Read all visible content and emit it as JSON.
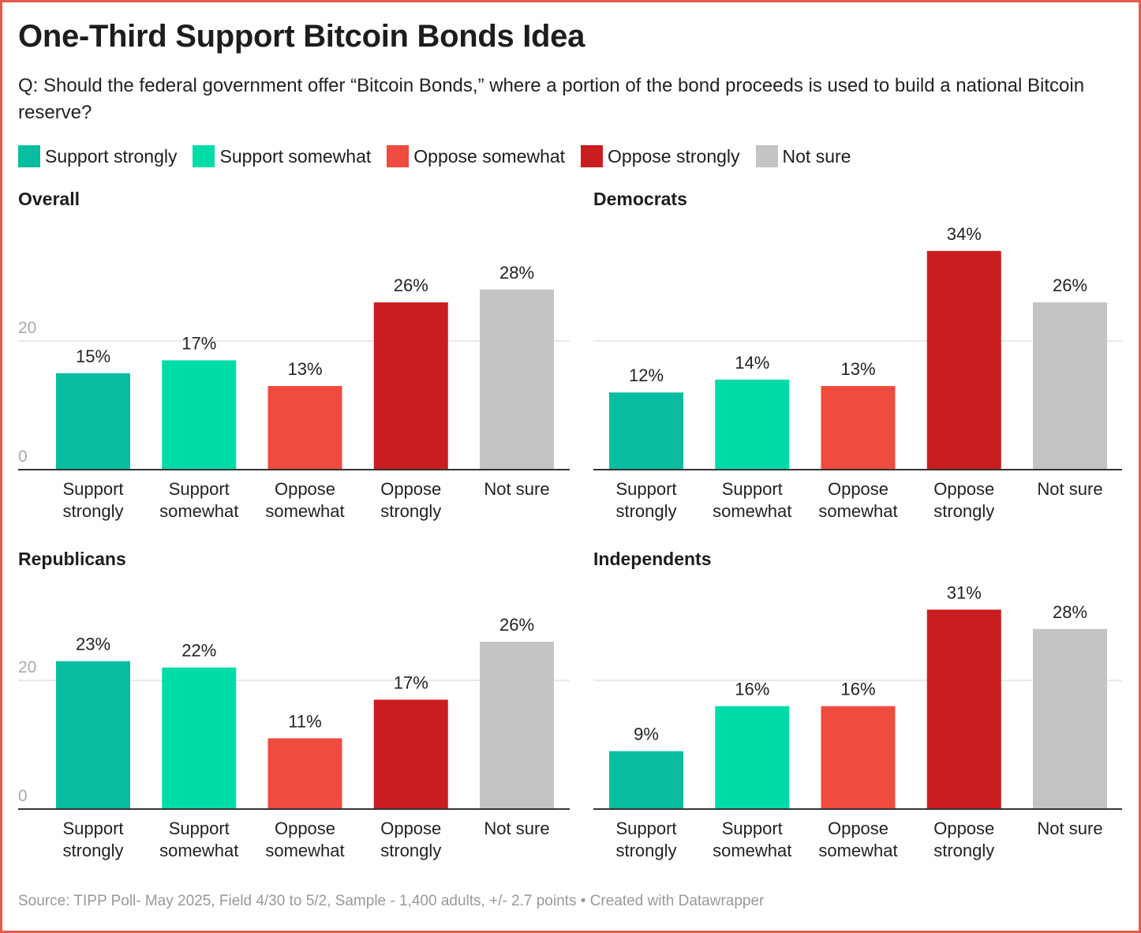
{
  "title": "One-Third Support Bitcoin Bonds Idea",
  "subtitle": "Q: Should the federal government offer “Bitcoin Bonds,” where a portion of the bond proceeds is used to build a national Bitcoin reserve?",
  "legend": [
    {
      "label": "Support strongly",
      "color": "#0abda0"
    },
    {
      "label": "Support somewhat",
      "color": "#00dca8"
    },
    {
      "label": "Oppose somewhat",
      "color": "#ef4b3f"
    },
    {
      "label": "Oppose strongly",
      "color": "#c91d1f"
    },
    {
      "label": "Not sure",
      "color": "#c4c4c4"
    }
  ],
  "footer": "Source: TIPP Poll- May 2025, Field 4/30 to 5/2, Sample - 1,400 adults, +/- 2.7 points • Created with Datawrapper",
  "chart_data": [
    {
      "type": "bar",
      "title": "Overall",
      "categories": [
        [
          "Support",
          "strongly"
        ],
        [
          "Support",
          "somewhat"
        ],
        [
          "Oppose",
          "somewhat"
        ],
        [
          "Oppose",
          "strongly"
        ],
        [
          "Not sure"
        ]
      ],
      "values": [
        15,
        17,
        13,
        26,
        28
      ],
      "labels": [
        "15%",
        "17%",
        "13%",
        "26%",
        "28%"
      ],
      "yticks": [
        "0",
        "20"
      ],
      "ylim": [
        0,
        36
      ]
    },
    {
      "type": "bar",
      "title": "Democrats",
      "categories": [
        [
          "Support",
          "strongly"
        ],
        [
          "Support",
          "somewhat"
        ],
        [
          "Oppose",
          "somewhat"
        ],
        [
          "Oppose",
          "strongly"
        ],
        [
          "Not sure"
        ]
      ],
      "values": [
        12,
        14,
        13,
        34,
        26
      ],
      "labels": [
        "12%",
        "14%",
        "13%",
        "34%",
        "26%"
      ],
      "yticks": [],
      "ylim": [
        0,
        36
      ]
    },
    {
      "type": "bar",
      "title": "Republicans",
      "categories": [
        [
          "Support",
          "strongly"
        ],
        [
          "Support",
          "somewhat"
        ],
        [
          "Oppose",
          "somewhat"
        ],
        [
          "Oppose",
          "strongly"
        ],
        [
          "Not sure"
        ]
      ],
      "values": [
        23,
        22,
        11,
        17,
        26
      ],
      "labels": [
        "23%",
        "22%",
        "11%",
        "17%",
        "26%"
      ],
      "yticks": [
        "0",
        "20"
      ],
      "ylim": [
        0,
        36
      ]
    },
    {
      "type": "bar",
      "title": "Independents",
      "categories": [
        [
          "Support",
          "strongly"
        ],
        [
          "Support",
          "somewhat"
        ],
        [
          "Oppose",
          "somewhat"
        ],
        [
          "Oppose",
          "strongly"
        ],
        [
          "Not sure"
        ]
      ],
      "values": [
        9,
        16,
        16,
        31,
        28
      ],
      "labels": [
        "9%",
        "16%",
        "16%",
        "31%",
        "28%"
      ],
      "yticks": [],
      "ylim": [
        0,
        36
      ]
    }
  ]
}
